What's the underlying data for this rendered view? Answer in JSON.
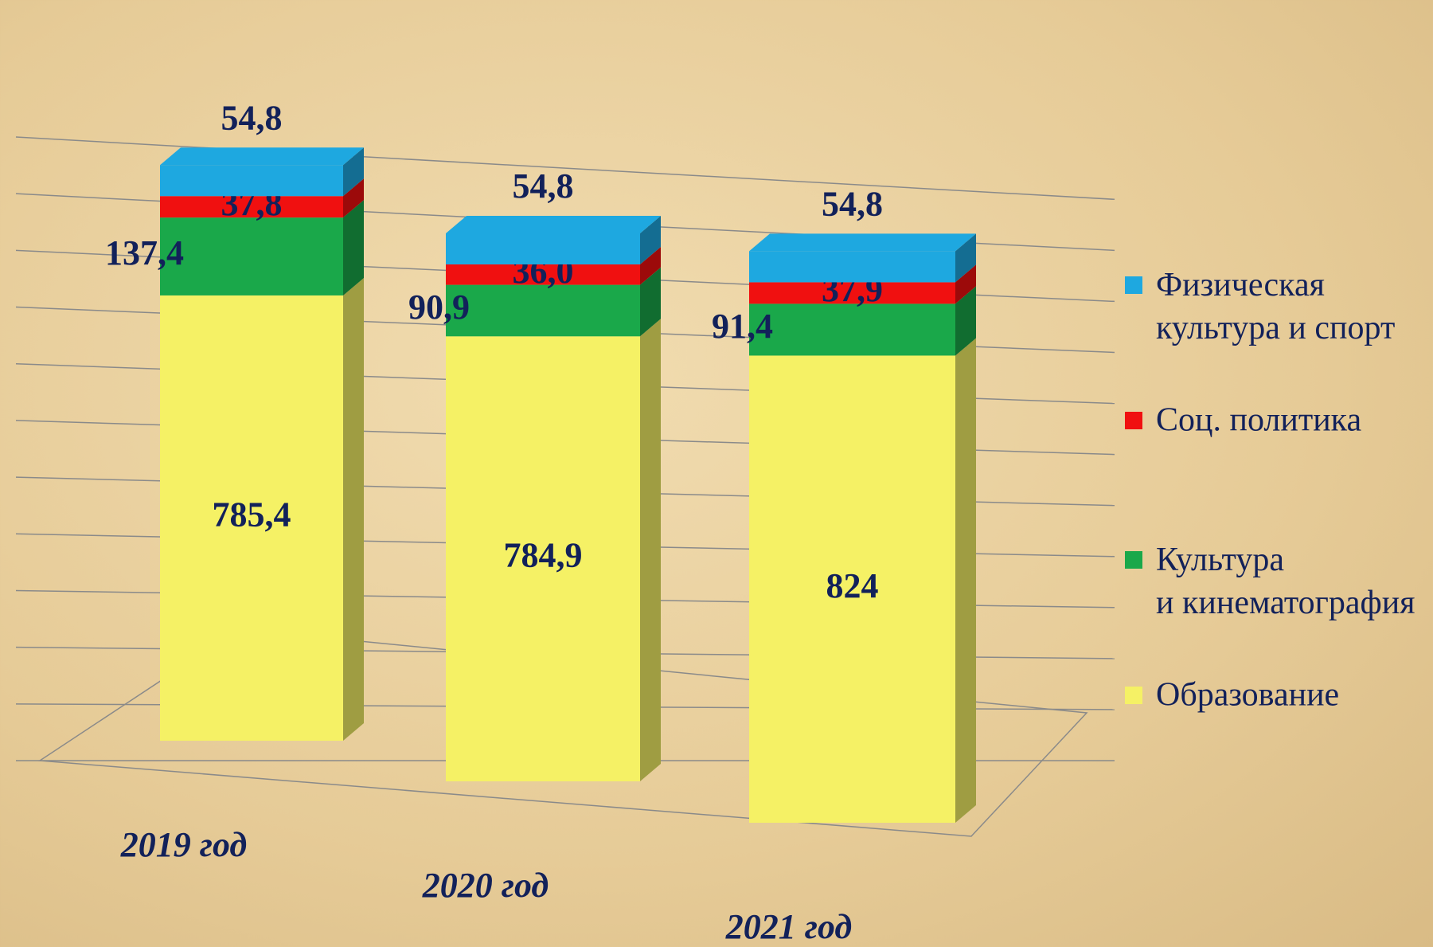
{
  "chart_data": {
    "type": "bar3d_stacked",
    "categories": [
      "2019 год",
      "2020 год",
      "2021 год"
    ],
    "series": [
      {
        "name": "Образование",
        "color": "#f5f165",
        "values": [
          785.4,
          784.9,
          824
        ],
        "value_labels": [
          "785,4",
          "784,9",
          "824"
        ]
      },
      {
        "name": "Культура и кинематография",
        "color": "#1aa84a",
        "values": [
          137.4,
          90.9,
          91.4
        ],
        "value_labels": [
          "137,4",
          "90,9",
          "91,4"
        ]
      },
      {
        "name": "Соц. политика",
        "color": "#f01010",
        "values": [
          37.8,
          36.0,
          37.9
        ],
        "value_labels": [
          "37,8",
          "36,0",
          "37,9"
        ]
      },
      {
        "name": "Физическая культура и спорт",
        "color": "#1ea8e0",
        "values": [
          54.8,
          54.8,
          54.8
        ],
        "value_labels": [
          "54,8",
          "54,8",
          "54,8"
        ]
      }
    ],
    "ylim": [
      0,
      1100
    ],
    "yticks": [
      0,
      100,
      200,
      300,
      400,
      500,
      600,
      700,
      800,
      900,
      1000,
      1100
    ],
    "grid": true,
    "legend": "right"
  }
}
